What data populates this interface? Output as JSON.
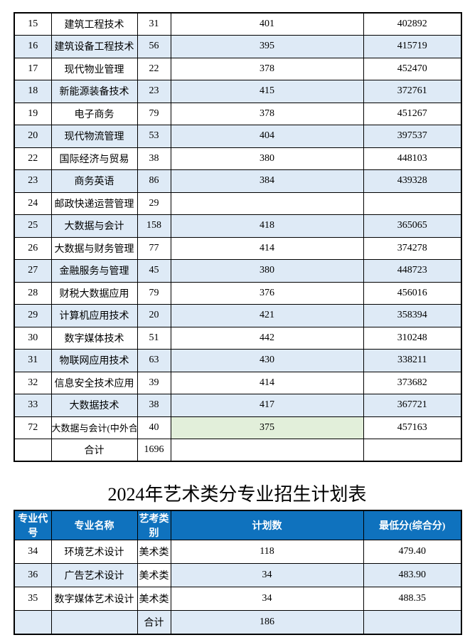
{
  "colors": {
    "band": "#DEEAF6",
    "highlight_green": "#E2EFDA",
    "header_bg": "#0F72BE",
    "header_text": "#FFFFFF",
    "border": "#000000"
  },
  "plan_table": {
    "rows": [
      {
        "code": "15",
        "name": "建筑工程技术",
        "count": "31",
        "score": "401",
        "rank": "402892",
        "band": false
      },
      {
        "code": "16",
        "name": "建筑设备工程技术",
        "count": "56",
        "score": "395",
        "rank": "415719",
        "band": true
      },
      {
        "code": "17",
        "name": "现代物业管理",
        "count": "22",
        "score": "378",
        "rank": "452470",
        "band": false
      },
      {
        "code": "18",
        "name": "新能源装备技术",
        "count": "23",
        "score": "415",
        "rank": "372761",
        "band": true
      },
      {
        "code": "19",
        "name": "电子商务",
        "count": "79",
        "score": "378",
        "rank": "451267",
        "band": false
      },
      {
        "code": "20",
        "name": "现代物流管理",
        "count": "53",
        "score": "404",
        "rank": "397537",
        "band": true
      },
      {
        "code": "22",
        "name": "国际经济与贸易",
        "count": "38",
        "score": "380",
        "rank": "448103",
        "band": false
      },
      {
        "code": "23",
        "name": "商务英语",
        "count": "86",
        "score": "384",
        "rank": "439328",
        "band": true
      },
      {
        "code": "24",
        "name": "邮政快递运营管理",
        "count": "29",
        "score": "",
        "rank": "",
        "band": false
      },
      {
        "code": "25",
        "name": "大数据与会计",
        "count": "158",
        "score": "418",
        "rank": "365065",
        "band": true
      },
      {
        "code": "26",
        "name": "大数据与财务管理",
        "count": "77",
        "score": "414",
        "rank": "374278",
        "band": false
      },
      {
        "code": "27",
        "name": "金融服务与管理",
        "count": "45",
        "score": "380",
        "rank": "448723",
        "band": true
      },
      {
        "code": "28",
        "name": "财税大数据应用",
        "count": "79",
        "score": "376",
        "rank": "456016",
        "band": false
      },
      {
        "code": "29",
        "name": "计算机应用技术",
        "count": "20",
        "score": "421",
        "rank": "358394",
        "band": true
      },
      {
        "code": "30",
        "name": "数字媒体技术",
        "count": "51",
        "score": "442",
        "rank": "310248",
        "band": false
      },
      {
        "code": "31",
        "name": "物联网应用技术",
        "count": "63",
        "score": "430",
        "rank": "338211",
        "band": true
      },
      {
        "code": "32",
        "name": "信息安全技术应用",
        "count": "39",
        "score": "414",
        "rank": "373682",
        "band": false
      },
      {
        "code": "33",
        "name": "大数据技术",
        "count": "38",
        "score": "417",
        "rank": "367721",
        "band": true
      },
      {
        "code": "72",
        "name": "大数据与会计(中外合作办学)",
        "count": "40",
        "score": "375",
        "rank": "457163",
        "band": false,
        "clip_name": true,
        "score_highlight": "green"
      },
      {
        "code": "",
        "name": "合计",
        "count": "1696",
        "score": "",
        "rank": "",
        "band": false
      }
    ]
  },
  "art_table": {
    "title": "2024年艺术类分专业招生计划表",
    "headers": [
      "专业代号",
      "专业名称",
      "艺考类别",
      "计划数",
      "最低分(综合分)"
    ],
    "rows": [
      {
        "code": "34",
        "name": "环境艺术设计",
        "category": "美术类",
        "plan": "118",
        "min": "479.40",
        "band": false
      },
      {
        "code": "36",
        "name": "广告艺术设计",
        "category": "美术类",
        "plan": "34",
        "min": "483.90",
        "band": true,
        "category_unshaded": true
      },
      {
        "code": "35",
        "name": "数字媒体艺术设计",
        "category": "美术类",
        "plan": "34",
        "min": "488.35",
        "band": false
      },
      {
        "code": "",
        "name": "",
        "category": "合计",
        "plan": "186",
        "min": "",
        "band": true
      }
    ]
  }
}
